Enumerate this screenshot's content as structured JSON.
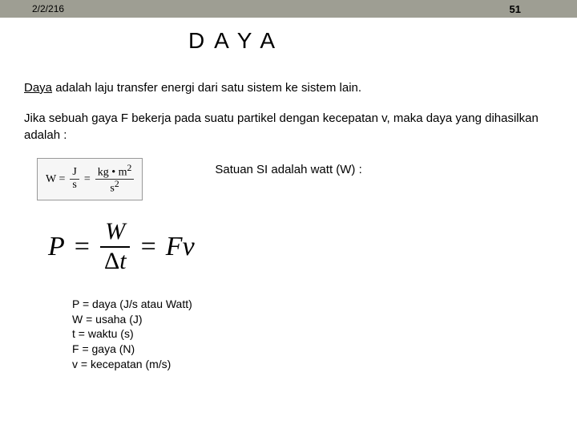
{
  "header": {
    "date": "2/2/216",
    "page_number": "51"
  },
  "title": "DAYA",
  "paragraphs": {
    "p1_underlined": "Daya",
    "p1_rest": " adalah laju transfer energi dari satu sistem ke sistem lain.",
    "p2": "Jika sebuah gaya F bekerja pada suatu partikel dengan kecepatan v, maka daya yang dihasilkan adalah :"
  },
  "watt_formula": {
    "W_eq": "W =",
    "J": "J",
    "s": "s",
    "eq": "=",
    "kgm2": "kg • m",
    "sq": "2",
    "s2": "s",
    "s2_sup": "2"
  },
  "si_note": "Satuan SI adalah watt  (W) :",
  "power_formula": {
    "P": "P",
    "eq1": "=",
    "W": "W",
    "dt": "Δt",
    "eq2": "=",
    "Fv": "Fv"
  },
  "definitions": {
    "d1": "P = daya (J/s atau Watt)",
    "d2": "W = usaha (J)",
    "d3": "t = waktu (s)",
    "d4": "F = gaya (N)",
    "d5": "v = kecepatan (m/s)"
  },
  "colors": {
    "header_bg": "#9e9e93",
    "page_bg": "#ffffff",
    "text": "#000000",
    "formula_box_bg": "#f6f6f6",
    "formula_box_border": "#999999"
  }
}
